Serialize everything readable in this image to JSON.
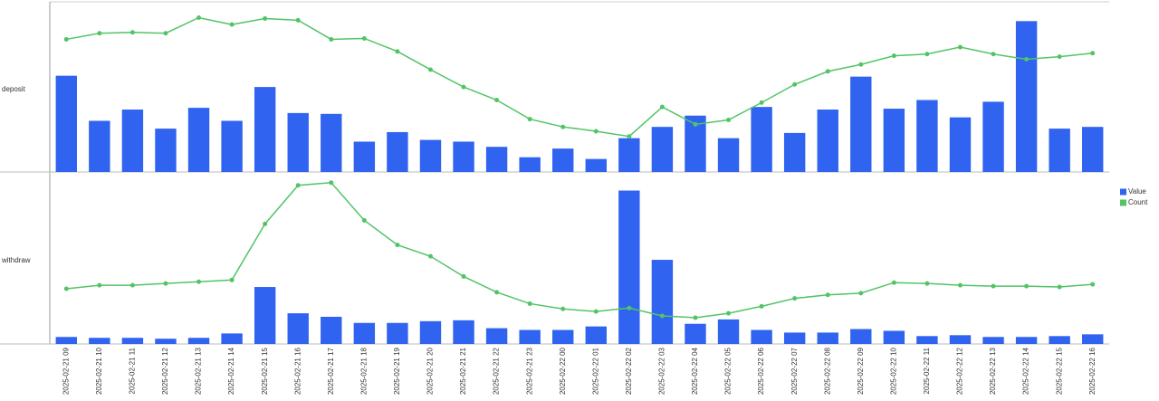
{
  "chart_data": [
    {
      "type": "bar",
      "ylabel": "deposit",
      "ylim": [
        0,
        190
      ],
      "series": [
        {
          "name": "Value",
          "type": "bar",
          "color": "#2f63f0",
          "values": [
            111,
            59,
            72,
            50,
            74,
            59,
            98,
            68,
            67,
            35,
            46,
            37,
            35,
            29,
            17,
            27,
            15,
            39,
            52,
            65,
            39,
            75,
            45,
            72,
            110,
            73,
            83,
            63,
            81,
            174,
            50,
            52
          ]
        },
        {
          "name": "Count",
          "type": "line",
          "color": "#52c466",
          "values": [
            153,
            160,
            161,
            160,
            178,
            170,
            177,
            175,
            153,
            154,
            139,
            118,
            98,
            83,
            61,
            52,
            47,
            41,
            75,
            55,
            60,
            80,
            101,
            116,
            124,
            134,
            136,
            144,
            136,
            130,
            133,
            137
          ]
        }
      ]
    },
    {
      "type": "bar",
      "ylabel": "withdraw",
      "ylim": [
        0,
        190
      ],
      "categories": [
        "2025-02-21 09",
        "2025-02-21 10",
        "2025-02-21 11",
        "2025-02-21 12",
        "2025-02-21 13",
        "2025-02-21 14",
        "2025-02-21 15",
        "2025-02-21 16",
        "2025-02-21 17",
        "2025-02-21 18",
        "2025-02-21 19",
        "2025-02-21 20",
        "2025-02-21 21",
        "2025-02-21 22",
        "2025-02-21 23",
        "2025-02-22 00",
        "2025-02-22 01",
        "2025-02-22 02",
        "2025-02-22 03",
        "2025-02-22 04",
        "2025-02-22 05",
        "2025-02-22 06",
        "2025-02-22 07",
        "2025-02-22 08",
        "2025-02-22 09",
        "2025-02-22 10",
        "2025-02-22 11",
        "2025-02-22 12",
        "2025-02-22 13",
        "2025-02-22 14",
        "2025-02-22 15",
        "2025-02-22 16"
      ],
      "series": [
        {
          "type": "bar",
          "color": "#2f63f0",
          "values": [
            8,
            7,
            7,
            6,
            7,
            12,
            65,
            35,
            31,
            24,
            24,
            26,
            27,
            18,
            16,
            16,
            20,
            175,
            96,
            23,
            28,
            16,
            13,
            13,
            17,
            15,
            9,
            10,
            8,
            8,
            9,
            11
          ]
        },
        {
          "type": "line",
          "color": "#52c466",
          "values": [
            63,
            67,
            67,
            69,
            71,
            73,
            137,
            181,
            184,
            141,
            113,
            100,
            77,
            59,
            46,
            40,
            37,
            41,
            32,
            30,
            35,
            43,
            52,
            56,
            58,
            70,
            69,
            67,
            66,
            66,
            65,
            68
          ]
        }
      ]
    }
  ]
}
